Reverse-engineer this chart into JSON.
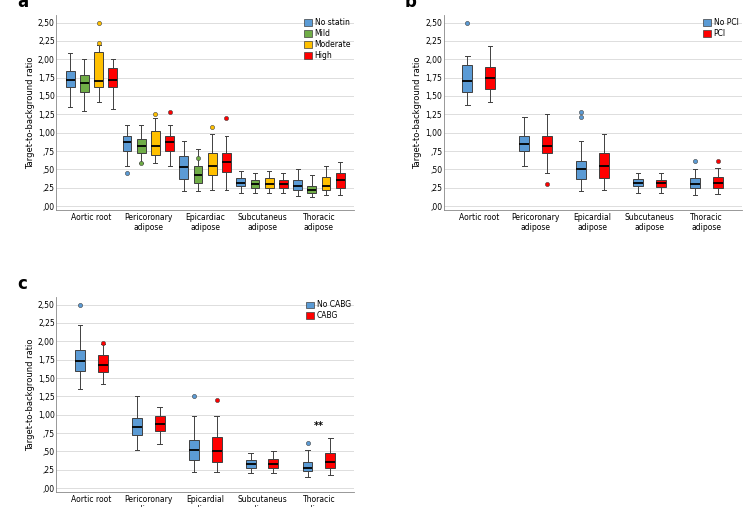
{
  "panel_a": {
    "title": "a",
    "ylabel": "Target-to-background ratio",
    "yticks": [
      0.0,
      0.25,
      0.5,
      0.75,
      1.0,
      1.25,
      1.5,
      1.75,
      2.0,
      2.25,
      2.5
    ],
    "yticklabels": [
      ",00",
      ",25",
      ",50",
      ",75",
      "1,00",
      "1,25",
      "1,50",
      "1,75",
      "2,00",
      "2,25",
      "2,50"
    ],
    "categories": [
      "Aortic root",
      "Pericoronary\nadipose",
      "Epicardiac\nadipose",
      "Subcutaneus\nadipose",
      "Thoracic\nadipose"
    ],
    "colors": [
      "#5B9BD5",
      "#70AD47",
      "#FFC000",
      "#FF0000"
    ],
    "legend_labels": [
      "No statin",
      "Mild",
      "Moderate",
      "High"
    ],
    "groups": [
      {
        "name": "Aortic root",
        "boxes": [
          {
            "q1": 1.62,
            "median": 1.72,
            "q3": 1.84,
            "whislo": 1.35,
            "whishi": 2.08,
            "fliers": []
          },
          {
            "q1": 1.55,
            "median": 1.67,
            "q3": 1.78,
            "whislo": 1.3,
            "whishi": 2.0,
            "fliers": []
          },
          {
            "q1": 1.62,
            "median": 1.7,
            "q3": 2.1,
            "whislo": 1.42,
            "whishi": 2.2,
            "fliers": [
              2.5,
              2.22
            ]
          },
          {
            "q1": 1.62,
            "median": 1.72,
            "q3": 1.88,
            "whislo": 1.32,
            "whishi": 2.0,
            "fliers": []
          }
        ]
      },
      {
        "name": "Pericoronary\nadipose",
        "boxes": [
          {
            "q1": 0.75,
            "median": 0.87,
            "q3": 0.95,
            "whislo": 0.55,
            "whishi": 1.1,
            "fliers": [
              0.45
            ]
          },
          {
            "q1": 0.72,
            "median": 0.82,
            "q3": 0.92,
            "whislo": 0.58,
            "whishi": 1.1,
            "fliers": [
              0.58
            ]
          },
          {
            "q1": 0.7,
            "median": 0.82,
            "q3": 1.02,
            "whislo": 0.58,
            "whishi": 1.2,
            "fliers": [
              1.25
            ]
          },
          {
            "q1": 0.75,
            "median": 0.87,
            "q3": 0.95,
            "whislo": 0.55,
            "whishi": 1.1,
            "fliers": [
              1.28
            ]
          }
        ]
      },
      {
        "name": "Epicardiac\nadipose",
        "boxes": [
          {
            "q1": 0.37,
            "median": 0.53,
            "q3": 0.68,
            "whislo": 0.2,
            "whishi": 0.88,
            "fliers": []
          },
          {
            "q1": 0.32,
            "median": 0.42,
            "q3": 0.55,
            "whislo": 0.2,
            "whishi": 0.78,
            "fliers": [
              0.65
            ]
          },
          {
            "q1": 0.42,
            "median": 0.55,
            "q3": 0.72,
            "whislo": 0.22,
            "whishi": 0.98,
            "fliers": [
              1.08
            ]
          },
          {
            "q1": 0.47,
            "median": 0.6,
            "q3": 0.72,
            "whislo": 0.22,
            "whishi": 0.95,
            "fliers": [
              1.2
            ]
          }
        ]
      },
      {
        "name": "Subcutaneus\nadipose",
        "boxes": [
          {
            "q1": 0.27,
            "median": 0.32,
            "q3": 0.38,
            "whislo": 0.18,
            "whishi": 0.48,
            "fliers": []
          },
          {
            "q1": 0.25,
            "median": 0.3,
            "q3": 0.35,
            "whislo": 0.18,
            "whishi": 0.45,
            "fliers": []
          },
          {
            "q1": 0.25,
            "median": 0.3,
            "q3": 0.38,
            "whislo": 0.18,
            "whishi": 0.48,
            "fliers": []
          },
          {
            "q1": 0.25,
            "median": 0.3,
            "q3": 0.35,
            "whislo": 0.18,
            "whishi": 0.45,
            "fliers": []
          }
        ]
      },
      {
        "name": "Thoracic\nadipose",
        "boxes": [
          {
            "q1": 0.22,
            "median": 0.27,
            "q3": 0.35,
            "whislo": 0.14,
            "whishi": 0.5,
            "fliers": []
          },
          {
            "q1": 0.18,
            "median": 0.22,
            "q3": 0.28,
            "whislo": 0.12,
            "whishi": 0.42,
            "fliers": []
          },
          {
            "q1": 0.22,
            "median": 0.28,
            "q3": 0.4,
            "whislo": 0.15,
            "whishi": 0.55,
            "fliers": []
          },
          {
            "q1": 0.25,
            "median": 0.35,
            "q3": 0.45,
            "whislo": 0.15,
            "whishi": 0.6,
            "fliers": []
          }
        ]
      }
    ]
  },
  "panel_b": {
    "title": "b",
    "ylabel": "Target-to-background ratio",
    "yticks": [
      0.0,
      0.25,
      0.5,
      0.75,
      1.0,
      1.25,
      1.5,
      1.75,
      2.0,
      2.25,
      2.5
    ],
    "yticklabels": [
      ",00",
      ",25",
      ",50",
      ",75",
      "1,00",
      "1,25",
      "1,50",
      "1,75",
      "2,00",
      "2,25",
      "2,50"
    ],
    "categories": [
      "Aortic root",
      "Pericoronary\nadipose",
      "Epicardial\nadipose",
      "Subcutaneus\nadipose",
      "Thoracic\nadipose"
    ],
    "colors": [
      "#5B9BD5",
      "#FF0000"
    ],
    "legend_labels": [
      "No PCI",
      "PCI"
    ],
    "groups": [
      {
        "name": "Aortic root",
        "boxes": [
          {
            "q1": 1.55,
            "median": 1.7,
            "q3": 1.92,
            "whislo": 1.38,
            "whishi": 2.05,
            "fliers": [
              2.5
            ]
          },
          {
            "q1": 1.6,
            "median": 1.75,
            "q3": 1.9,
            "whislo": 1.42,
            "whishi": 2.18,
            "fliers": []
          }
        ]
      },
      {
        "name": "Pericoronary\nadipose",
        "boxes": [
          {
            "q1": 0.75,
            "median": 0.85,
            "q3": 0.95,
            "whislo": 0.55,
            "whishi": 1.22,
            "fliers": []
          },
          {
            "q1": 0.72,
            "median": 0.82,
            "q3": 0.95,
            "whislo": 0.45,
            "whishi": 1.25,
            "fliers": [
              0.3
            ]
          }
        ]
      },
      {
        "name": "Epicardial\nadipose",
        "boxes": [
          {
            "q1": 0.37,
            "median": 0.5,
            "q3": 0.62,
            "whislo": 0.2,
            "whishi": 0.88,
            "fliers": [
              1.28,
              1.22
            ]
          },
          {
            "q1": 0.38,
            "median": 0.55,
            "q3": 0.72,
            "whislo": 0.22,
            "whishi": 0.98,
            "fliers": []
          }
        ]
      },
      {
        "name": "Subcutaneus\nadipose",
        "boxes": [
          {
            "q1": 0.27,
            "median": 0.31,
            "q3": 0.37,
            "whislo": 0.18,
            "whishi": 0.45,
            "fliers": []
          },
          {
            "q1": 0.26,
            "median": 0.32,
            "q3": 0.36,
            "whislo": 0.18,
            "whishi": 0.45,
            "fliers": []
          }
        ]
      },
      {
        "name": "Thoracic\nadipose",
        "boxes": [
          {
            "q1": 0.24,
            "median": 0.3,
            "q3": 0.38,
            "whislo": 0.15,
            "whishi": 0.5,
            "fliers": [
              0.62
            ]
          },
          {
            "q1": 0.25,
            "median": 0.32,
            "q3": 0.4,
            "whislo": 0.16,
            "whishi": 0.52,
            "fliers": [
              0.62
            ]
          }
        ]
      }
    ]
  },
  "panel_c": {
    "title": "c",
    "ylabel": "Target-to-background ratio",
    "yticks": [
      0.0,
      0.25,
      0.5,
      0.75,
      1.0,
      1.25,
      1.5,
      1.75,
      2.0,
      2.25,
      2.5
    ],
    "yticklabels": [
      ",00",
      ",25",
      ",50",
      ",75",
      "1,00",
      "1,25",
      "1,50",
      "1,75",
      "2,00",
      "2,25",
      "2,50"
    ],
    "categories": [
      "Aortic root",
      "Pericoronary\nadipose",
      "Epicardial\nadipose",
      "Subcutaneus\nadipose",
      "Thoracic\nadipose"
    ],
    "colors": [
      "#5B9BD5",
      "#FF0000"
    ],
    "legend_labels": [
      "No CABG",
      "CABG"
    ],
    "annotation": {
      "text": "**",
      "group_idx": 4
    },
    "groups": [
      {
        "name": "Aortic root",
        "boxes": [
          {
            "q1": 1.6,
            "median": 1.73,
            "q3": 1.88,
            "whislo": 1.35,
            "whishi": 2.22,
            "fliers": [
              2.5
            ]
          },
          {
            "q1": 1.58,
            "median": 1.68,
            "q3": 1.82,
            "whislo": 1.42,
            "whishi": 1.97,
            "fliers": [
              1.98
            ]
          }
        ]
      },
      {
        "name": "Pericoronary\nadipose",
        "boxes": [
          {
            "q1": 0.72,
            "median": 0.83,
            "q3": 0.95,
            "whislo": 0.52,
            "whishi": 1.25,
            "fliers": []
          },
          {
            "q1": 0.78,
            "median": 0.88,
            "q3": 0.98,
            "whislo": 0.6,
            "whishi": 1.1,
            "fliers": []
          }
        ]
      },
      {
        "name": "Epicardial\nadipose",
        "boxes": [
          {
            "q1": 0.38,
            "median": 0.52,
            "q3": 0.65,
            "whislo": 0.22,
            "whishi": 0.98,
            "fliers": [
              1.25
            ]
          },
          {
            "q1": 0.35,
            "median": 0.5,
            "q3": 0.7,
            "whislo": 0.22,
            "whishi": 0.98,
            "fliers": [
              1.2
            ]
          }
        ]
      },
      {
        "name": "Subcutaneus\nadipose",
        "boxes": [
          {
            "q1": 0.27,
            "median": 0.33,
            "q3": 0.38,
            "whislo": 0.2,
            "whishi": 0.48,
            "fliers": []
          },
          {
            "q1": 0.28,
            "median": 0.33,
            "q3": 0.4,
            "whislo": 0.2,
            "whishi": 0.5,
            "fliers": []
          }
        ]
      },
      {
        "name": "Thoracic\nadipose",
        "boxes": [
          {
            "q1": 0.24,
            "median": 0.28,
            "q3": 0.36,
            "whislo": 0.15,
            "whishi": 0.52,
            "fliers": [
              0.62
            ]
          },
          {
            "q1": 0.28,
            "median": 0.35,
            "q3": 0.48,
            "whislo": 0.18,
            "whishi": 0.68,
            "fliers": []
          }
        ]
      }
    ]
  }
}
